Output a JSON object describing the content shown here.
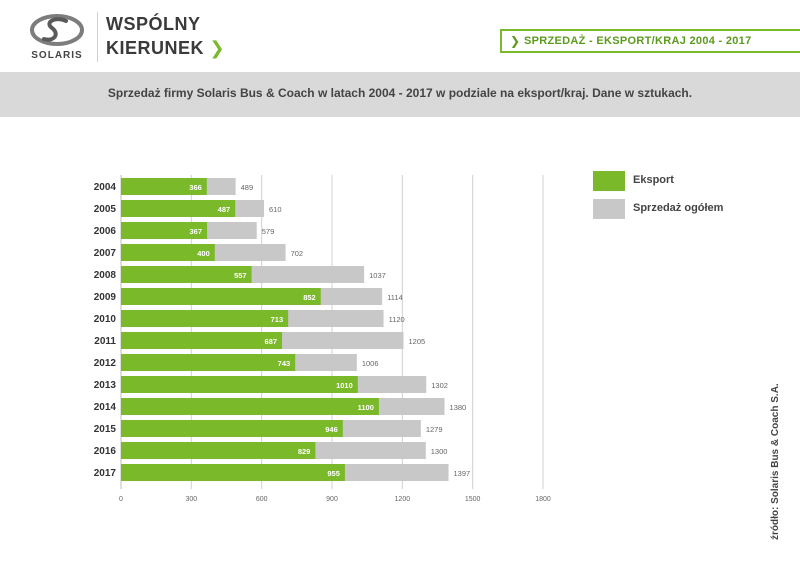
{
  "header": {
    "logo_text": "SOLARIS",
    "brand_line1": "WSPÓLNY",
    "brand_line2": "KIERUNEK",
    "brand_chevron": "❯",
    "tag_chevron": "❯",
    "tag_text": "SPRZEDAŻ - EKSPORT/KRAJ 2004 - 2017"
  },
  "banner": {
    "text": "Sprzedaż firmy Solaris Bus & Coach w latach 2004 - 2017 w podziale na eksport/kraj. Dane w sztukach."
  },
  "source": "źródło: Solaris Bus & Coach S.A.",
  "colors": {
    "accent": "#7ab929",
    "total": "#c8c8c8",
    "banner": "#d9d9d9",
    "grid": "#d0d0d0"
  },
  "legend": [
    {
      "label": "Eksport",
      "color": "#7ab929"
    },
    {
      "label": "Sprzedaż ogółem",
      "color": "#c8c8c8"
    }
  ],
  "chart_data": {
    "type": "bar",
    "orientation": "horizontal",
    "categories": [
      "2004",
      "2005",
      "2006",
      "2007",
      "2008",
      "2009",
      "2010",
      "2011",
      "2012",
      "2013",
      "2014",
      "2015",
      "2016",
      "2017"
    ],
    "series": [
      {
        "name": "Eksport",
        "values": [
          366,
          487,
          367,
          400,
          557,
          852,
          713,
          687,
          743,
          1010,
          1100,
          946,
          829,
          955
        ]
      },
      {
        "name": "Sprzedaż ogółem",
        "values": [
          489,
          610,
          579,
          702,
          1037,
          1114,
          1120,
          1205,
          1006,
          1302,
          1380,
          1279,
          1300,
          1397
        ]
      }
    ],
    "xlim": [
      0,
      1800
    ],
    "xticks": [
      0,
      300,
      600,
      900,
      1200,
      1500,
      1800
    ],
    "grid": true,
    "legend_position": "top-right",
    "title": "",
    "xlabel": "",
    "ylabel": ""
  }
}
